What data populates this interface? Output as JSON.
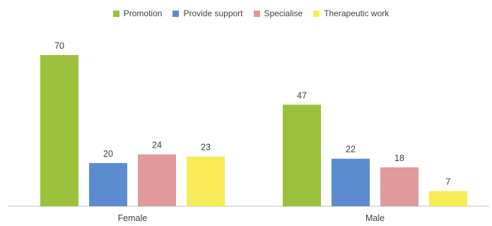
{
  "chart_data": {
    "type": "bar",
    "categories": [
      "Female",
      "Male"
    ],
    "series": [
      {
        "name": "Promotion",
        "values": [
          70,
          47
        ],
        "color": "#9bc13c"
      },
      {
        "name": "Provide support",
        "values": [
          20,
          22
        ],
        "color": "#5b8cd0"
      },
      {
        "name": "Specialise",
        "values": [
          24,
          18
        ],
        "color": "#e09a9a"
      },
      {
        "name": "Therapeutic work",
        "values": [
          23,
          7
        ],
        "color": "#f8ea58"
      }
    ],
    "title": "",
    "xlabel": "",
    "ylabel": "",
    "ylim": [
      0,
      70
    ],
    "grid": false,
    "legend": "top-center",
    "data_labels": true,
    "axis_color": "#bfbfbf"
  }
}
